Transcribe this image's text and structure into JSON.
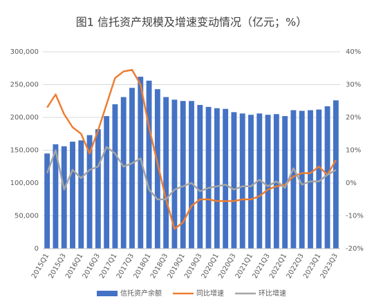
{
  "chart_data": {
    "type": "bar",
    "title": "图1 信托资产规模及增速变动情况（亿元；%）",
    "categories": [
      "2015Q1",
      null,
      "2015Q3",
      null,
      "2016Q1",
      null,
      "2016Q3",
      null,
      "2017Q1",
      null,
      "2017Q3",
      null,
      "2018Q1",
      null,
      "2018Q3",
      null,
      "2019Q1",
      null,
      "2019Q3",
      null,
      "2020Q1",
      null,
      "2020Q3",
      null,
      "2021Q1",
      null,
      "2021Q3",
      null,
      "2022Q1",
      null,
      "2022Q3",
      null,
      "2023Q1",
      null,
      "2023Q3"
    ],
    "series": [
      {
        "name": "信托资产余额",
        "type": "bar",
        "color": "#4472c4",
        "values": [
          145000,
          159000,
          156000,
          163000,
          165000,
          173000,
          182000,
          202000,
          220000,
          231000,
          245000,
          262000,
          256000,
          243000,
          231000,
          227000,
          225000,
          225000,
          219000,
          216000,
          214000,
          213000,
          208000,
          206000,
          204000,
          206000,
          204000,
          205000,
          202000,
          211000,
          210000,
          211000,
          212000,
          217000,
          226000
        ]
      },
      {
        "name": "同比增速",
        "type": "line",
        "axis": "y2",
        "color": "#ed7d31",
        "values": [
          23,
          27,
          21,
          17,
          15,
          9,
          16,
          24,
          32,
          34,
          34.5,
          30,
          17,
          6,
          -5,
          -14,
          -12,
          -7,
          -5,
          -5,
          -5.5,
          -5.5,
          -5.5,
          -5,
          -5,
          -4,
          -2,
          -1,
          -0.5,
          2,
          3,
          3,
          5,
          2.5,
          7
        ]
      },
      {
        "name": "环比增速",
        "type": "line",
        "axis": "y2",
        "color": "#a5a5a5",
        "values": [
          3,
          10,
          -2,
          4,
          1.5,
          4,
          5,
          11,
          9,
          5,
          6,
          7.5,
          -2,
          -5,
          -5,
          -2,
          -1,
          0,
          -2.5,
          -1.5,
          -1,
          -0.5,
          -2,
          -1,
          -1,
          1,
          -1,
          0.5,
          -1.5,
          4.5,
          -0.5,
          0.5,
          0.5,
          2.5,
          4
        ]
      }
    ],
    "ylim": [
      0,
      300000
    ],
    "yticks": [
      0,
      {
        "value": 50000,
        "label": "50,000"
      },
      {
        "value": 100000,
        "label": "100,000"
      },
      {
        "value": 150000,
        "label": "150,000"
      },
      {
        "value": 200000,
        "label": "200,000"
      },
      {
        "value": 250000,
        "label": "250,000"
      },
      {
        "value": 300000,
        "label": "300,000"
      }
    ],
    "y2lim": [
      -20,
      40
    ],
    "y2ticks": [
      {
        "value": -20,
        "label": "-20%"
      },
      {
        "value": -10,
        "label": "-10%"
      },
      {
        "value": 0,
        "label": "0%"
      },
      {
        "value": 10,
        "label": "10%"
      },
      {
        "value": 20,
        "label": "20%"
      },
      {
        "value": 30,
        "label": "30%"
      },
      {
        "value": 40,
        "label": "40%"
      }
    ],
    "grid": true,
    "legend": "bottom"
  }
}
